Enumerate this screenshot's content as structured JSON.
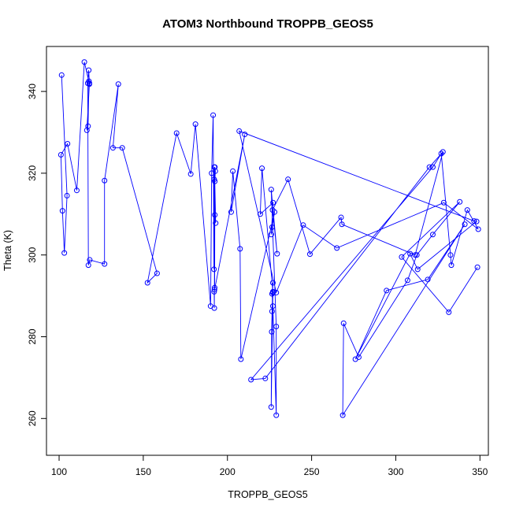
{
  "chart_data": {
    "type": "line",
    "title": "ATOM3 Northbound TROPPB_GEOS5",
    "xlabel": "TROPPB_GEOS5",
    "ylabel": "Theta (K)",
    "xlim": [
      92.5,
      355
    ],
    "ylim": [
      251,
      351
    ],
    "xticks": [
      100,
      150,
      200,
      250,
      300,
      350
    ],
    "yticks": [
      260,
      280,
      300,
      320,
      340
    ],
    "series": [
      {
        "color": "#0000ff",
        "marker": "open-circle",
        "x": [
          101.5,
          104.7,
          103.1,
          102.0,
          101.1,
          105.0,
          110.5,
          115.0,
          118.0,
          116.5,
          117.2,
          117.7,
          118.0,
          117.6,
          117.0,
          117.4,
          118.2,
          127.0,
          127.0,
          135.2,
          132.0,
          137.5,
          158.2,
          152.5,
          169.8,
          178.2,
          181.0,
          190.0,
          190.6,
          191.5,
          192.0,
          192.2,
          192.1,
          192.3,
          192.4,
          192.5,
          193.0,
          192.5,
          192.8,
          192.5,
          192.2,
          192.1,
          210.3,
          202.2,
          203.2,
          207.5,
          208.0,
          228.0,
          226.5,
          226.0,
          227.1,
          219.5,
          220.5,
          227.0,
          227.0,
          226.0,
          226.3,
          226.5,
          227.0,
          226.5,
          227.0,
          229.0,
          229.0,
          226.0,
          229.5,
          226.8,
          236.0,
          249.0,
          267.5,
          268.0,
          311.5,
          328.0,
          320.0,
          222.5,
          214.0,
          322.0,
          327.0,
          332.5,
          333.0,
          342.5,
          349.0,
          328.5,
          265.0,
          245.0,
          229.0,
          207.0,
          346.5,
          348.0,
          313.0,
          308.5,
          276.0,
          294.5,
          319.0,
          341.0,
          268.5,
          269.0,
          278.0,
          307.0,
          312.5,
          322.0,
          338.0,
          303.5,
          331.5,
          348.5
        ],
        "y": [
          344.0,
          314.5,
          300.5,
          310.8,
          324.5,
          327.2,
          315.8,
          347.2,
          341.8,
          330.5,
          331.5,
          342.5,
          342.0,
          345.2,
          342.0,
          297.5,
          298.8,
          297.8,
          318.2,
          341.8,
          326.2,
          326.2,
          295.5,
          293.2,
          329.8,
          319.8,
          332.0,
          287.5,
          320.0,
          334.2,
          296.5,
          321.5,
          318.5,
          291.5,
          292.0,
          309.8,
          307.8,
          318.0,
          320.5,
          321.5,
          287.0,
          291.0,
          329.5,
          310.5,
          320.5,
          301.5,
          274.5,
          310.5,
          306.8,
          305.0,
          312.8,
          310.0,
          321.2,
          291.0,
          290.8,
          262.8,
          281.2,
          286.2,
          293.2,
          290.5,
          287.5,
          260.8,
          282.5,
          316.0,
          300.3,
          311.0,
          318.5,
          300.2,
          309.2,
          307.5,
          300.0,
          325.2,
          321.5,
          269.8,
          269.5,
          321.5,
          324.8,
          300.0,
          297.5,
          311.0,
          306.3,
          312.8,
          301.7,
          307.3,
          290.8,
          330.3,
          308.3,
          308.2,
          296.5,
          300.3,
          274.5,
          291.3,
          294.0,
          307.5,
          260.8,
          283.3,
          275.0,
          293.8,
          300.0,
          305.0,
          313.0,
          299.5,
          286.0,
          297.0
        ]
      }
    ]
  }
}
